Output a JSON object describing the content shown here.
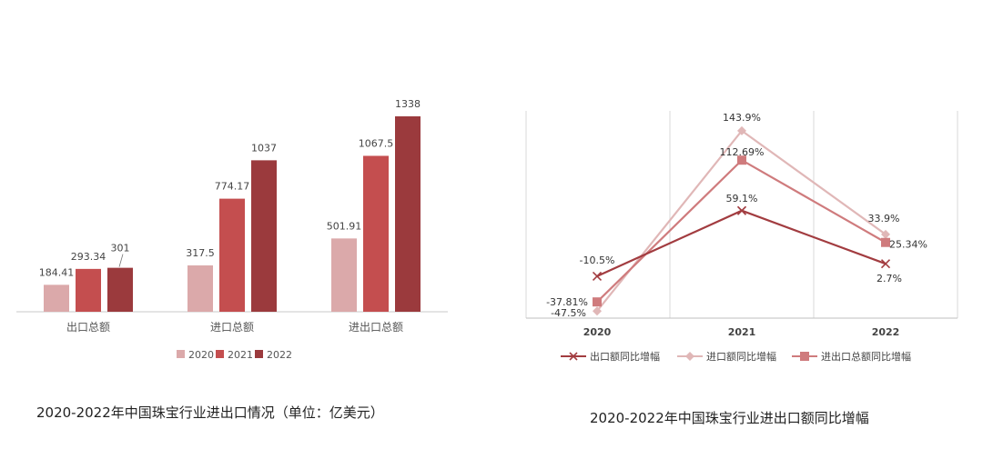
{
  "chart_data": [
    {
      "type": "bar",
      "categories": [
        "出口总额",
        "进口总额",
        "进出口总额"
      ],
      "series": [
        {
          "name": "2020",
          "values": [
            184.41,
            317.5,
            501.91
          ],
          "color": "#dba9aa"
        },
        {
          "name": "2021",
          "values": [
            293.34,
            774.17,
            1067.5
          ],
          "color": "#c44e4f"
        },
        {
          "name": "2022",
          "values": [
            301,
            1037,
            1338
          ],
          "color": "#9b3a3d"
        }
      ],
      "value_labels": [
        [
          "184.41",
          "317.5",
          "501.91"
        ],
        [
          "293.34",
          "774.17",
          "1067.5"
        ],
        [
          "301",
          "1037",
          "1338"
        ]
      ],
      "ylim": [
        0,
        1450
      ],
      "grid": false,
      "legend": "bottom",
      "caption": "2020-2022年中国珠宝行业进出口情况（单位：亿美元）"
    },
    {
      "type": "line",
      "x": [
        "2020",
        "2021",
        "2022"
      ],
      "series": [
        {
          "name": "出口额同比增幅",
          "values": [
            -10.5,
            59.1,
            2.7
          ],
          "labels": [
            "-10.5%",
            "59.1%",
            "2.7%"
          ],
          "color": "#a23c40",
          "marker": "x"
        },
        {
          "name": "进口额同比增幅",
          "values": [
            -47.5,
            143.9,
            33.9
          ],
          "labels": [
            "-47.5%",
            "143.9%",
            "33.9%"
          ],
          "color": "#e0b7b7",
          "marker": "diamond"
        },
        {
          "name": "进出口总额同比增幅",
          "values": [
            -37.81,
            112.69,
            25.34
          ],
          "labels": [
            "-37.81%",
            "112.69%",
            "25.34%"
          ],
          "color": "#cf7b7d",
          "marker": "square"
        }
      ],
      "ylim": [
        -55,
        165
      ],
      "grid": true,
      "legend": "bottom",
      "caption": "2020-2022年中国珠宝行业进出口额同比增幅"
    }
  ]
}
